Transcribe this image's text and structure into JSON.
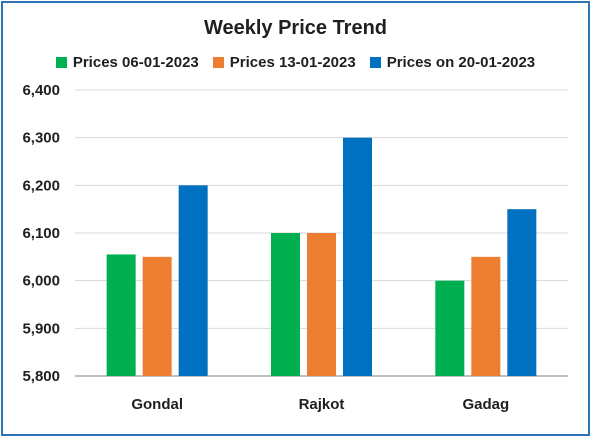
{
  "chart_data": {
    "type": "bar",
    "title": "Weekly Price Trend",
    "categories": [
      "Gondal",
      "Rajkot",
      "Gadag"
    ],
    "series": [
      {
        "name": "Prices 06-01-2023",
        "color": "#00b050",
        "values": [
          6055,
          6100,
          6000
        ]
      },
      {
        "name": "Prices 13-01-2023",
        "color": "#ed7d31",
        "values": [
          6050,
          6100,
          6050
        ]
      },
      {
        "name": "Prices on 20-01-2023",
        "color": "#0070c0",
        "values": [
          6200,
          6300,
          6150
        ]
      }
    ],
    "ylim": [
      5800,
      6400
    ],
    "yticks": [
      "5,800",
      "5,900",
      "6,000",
      "6,100",
      "6,200",
      "6,300",
      "6,400"
    ],
    "grid": true,
    "legend_position": "top"
  }
}
